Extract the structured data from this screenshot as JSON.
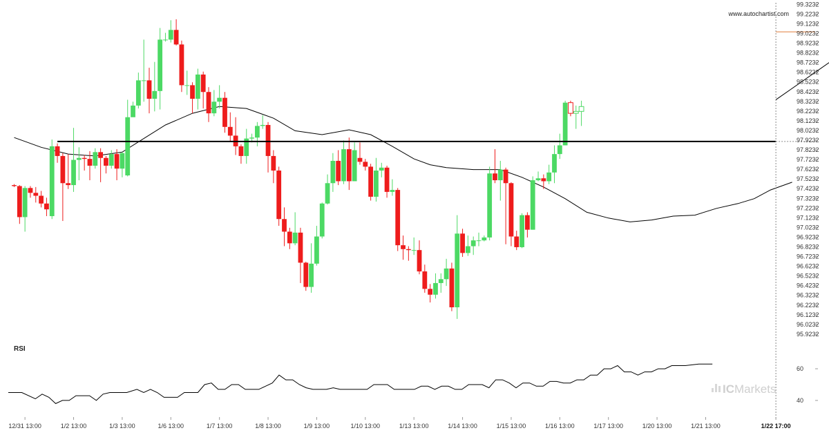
{
  "watermark": "www.autochartist.com",
  "brand": {
    "prefix": "IC",
    "name": "Markets"
  },
  "colors": {
    "up": "#4cd964",
    "down": "#ee1c1c",
    "level": "#000000",
    "target": "#e07b39",
    "ma": "#000000",
    "rsi": "#000000",
    "grid": "#e5e5e5"
  },
  "chart_data": {
    "type": "candlestick",
    "title": "",
    "y_ticks": [
      "95.9232",
      "96.0232",
      "96.1232",
      "96.2232",
      "96.3232",
      "96.4232",
      "96.5232",
      "96.6232",
      "96.7232",
      "96.8232",
      "96.9232",
      "97.0232",
      "97.1232",
      "97.2232",
      "97.3232",
      "97.4232",
      "97.5232",
      "97.6232",
      "97.7232",
      "97.8232",
      "97.9232",
      "98.0232",
      "98.1232",
      "98.2232",
      "98.3232",
      "98.4232",
      "98.5232",
      "98.6232",
      "98.7232",
      "98.8232",
      "98.9232",
      "99.0232",
      "99.1232",
      "99.2232",
      "99.3232"
    ],
    "ylim": [
      95.88,
      99.34
    ],
    "x_labels": [
      {
        "label": "12/31 13:00",
        "i": 2
      },
      {
        "label": "1/2 13:00",
        "i": 11
      },
      {
        "label": "1/3 13:00",
        "i": 20
      },
      {
        "label": "1/6 13:00",
        "i": 29
      },
      {
        "label": "1/7 13:00",
        "i": 38
      },
      {
        "label": "1/8 13:00",
        "i": 47
      },
      {
        "label": "1/9 13:00",
        "i": 56
      },
      {
        "label": "1/10 13:00",
        "i": 65
      },
      {
        "label": "1/13 13:00",
        "i": 74
      },
      {
        "label": "1/14 13:00",
        "i": 83
      },
      {
        "label": "1/15 13:00",
        "i": 92
      },
      {
        "label": "1/16 13:00",
        "i": 101
      },
      {
        "label": "1/17 13:00",
        "i": 110
      },
      {
        "label": "1/20 13:00",
        "i": 119
      },
      {
        "label": "1/21 13:00",
        "i": 128
      },
      {
        "label": "1/22 17:00",
        "i": 141,
        "bold": true
      }
    ],
    "candles": [
      [
        97.46,
        97.45,
        97.47,
        97.44
      ],
      [
        97.45,
        97.13,
        97.46,
        97.06
      ],
      [
        97.13,
        97.43,
        97.45,
        96.98
      ],
      [
        97.43,
        97.38,
        97.45,
        97.33
      ],
      [
        97.38,
        97.35,
        97.44,
        97.28
      ],
      [
        97.35,
        97.27,
        97.4,
        97.23
      ],
      [
        97.27,
        97.21,
        97.33,
        97.14
      ],
      [
        97.14,
        97.86,
        97.93,
        97.11
      ],
      [
        97.86,
        97.76,
        97.89,
        97.69
      ],
      [
        97.76,
        97.48,
        97.79,
        97.09
      ],
      [
        97.48,
        97.46,
        97.78,
        97.42
      ],
      [
        97.46,
        97.72,
        98.05,
        97.39
      ],
      [
        97.72,
        97.74,
        97.85,
        97.51
      ],
      [
        97.74,
        97.73,
        97.77,
        97.61
      ],
      [
        97.73,
        97.66,
        97.81,
        97.51
      ],
      [
        97.66,
        97.8,
        97.84,
        97.63
      ],
      [
        97.8,
        97.74,
        97.84,
        97.49
      ],
      [
        97.74,
        97.66,
        97.76,
        97.58
      ],
      [
        97.66,
        97.78,
        97.82,
        97.63
      ],
      [
        97.78,
        97.63,
        97.83,
        97.51
      ],
      [
        97.63,
        97.79,
        97.8,
        97.54
      ],
      [
        97.56,
        98.16,
        98.34,
        97.55
      ],
      [
        98.16,
        98.28,
        98.32,
        98.19
      ],
      [
        98.28,
        98.54,
        98.62,
        98.25
      ],
      [
        98.54,
        98.54,
        98.96,
        98.32
      ],
      [
        98.54,
        98.35,
        98.67,
        98.2
      ],
      [
        98.35,
        98.43,
        98.73,
        98.22
      ],
      [
        98.43,
        98.96,
        99.08,
        98.24
      ],
      [
        98.96,
        98.96,
        99.03,
        98.94
      ],
      [
        98.96,
        99.06,
        99.16,
        98.93
      ],
      [
        99.06,
        98.91,
        99.17,
        98.9
      ],
      [
        98.91,
        98.49,
        98.95,
        98.42
      ],
      [
        98.49,
        98.49,
        98.64,
        98.39
      ],
      [
        98.49,
        98.35,
        98.52,
        98.2
      ],
      [
        98.35,
        98.6,
        98.66,
        98.24
      ],
      [
        98.6,
        98.42,
        98.63,
        98.25
      ],
      [
        98.42,
        98.2,
        98.47,
        98.11
      ],
      [
        98.2,
        98.32,
        98.44,
        98.17
      ],
      [
        98.32,
        98.36,
        98.49,
        98.25
      ],
      [
        98.36,
        98.06,
        98.42,
        98.0
      ],
      [
        98.06,
        97.97,
        98.21,
        97.91
      ],
      [
        97.97,
        97.86,
        98.16,
        97.77
      ],
      [
        97.86,
        97.76,
        97.88,
        97.68
      ],
      [
        97.76,
        97.94,
        98.04,
        97.68
      ],
      [
        97.94,
        97.95,
        97.99,
        97.9
      ],
      [
        97.95,
        98.07,
        98.11,
        97.86
      ],
      [
        98.07,
        98.08,
        98.18,
        98.04
      ],
      [
        98.08,
        97.76,
        98.11,
        97.59
      ],
      [
        97.76,
        97.61,
        97.82,
        97.48
      ],
      [
        97.61,
        97.11,
        97.65,
        97.04
      ],
      [
        97.11,
        96.98,
        97.23,
        96.83
      ],
      [
        96.98,
        96.86,
        97.02,
        96.8
      ],
      [
        96.86,
        96.97,
        97.18,
        96.84
      ],
      [
        96.97,
        96.66,
        97.02,
        96.45
      ],
      [
        96.66,
        96.41,
        96.67,
        96.37
      ],
      [
        96.41,
        96.65,
        96.86,
        96.35
      ],
      [
        96.65,
        96.93,
        97.04,
        96.63
      ],
      [
        96.93,
        97.27,
        97.28,
        96.91
      ],
      [
        97.27,
        97.48,
        97.57,
        97.26
      ],
      [
        97.48,
        97.71,
        97.79,
        97.39
      ],
      [
        97.71,
        97.5,
        97.82,
        97.46
      ],
      [
        97.5,
        97.83,
        97.92,
        97.47
      ],
      [
        97.83,
        97.5,
        97.95,
        97.41
      ],
      [
        97.5,
        97.82,
        97.9,
        97.74
      ],
      [
        97.74,
        97.7,
        97.9,
        97.67
      ],
      [
        97.7,
        97.65,
        97.73,
        97.61
      ],
      [
        97.65,
        97.34,
        97.68,
        97.3
      ],
      [
        97.34,
        97.61,
        97.74,
        97.29
      ],
      [
        97.61,
        97.64,
        97.69,
        97.54
      ],
      [
        97.64,
        97.39,
        97.66,
        97.33
      ],
      [
        97.39,
        97.41,
        97.52,
        97.35
      ],
      [
        97.41,
        96.84,
        97.43,
        96.78
      ],
      [
        96.84,
        96.8,
        96.94,
        96.69
      ],
      [
        96.8,
        96.79,
        96.83,
        96.68
      ],
      [
        96.79,
        96.79,
        96.92,
        96.74
      ],
      [
        96.79,
        96.57,
        96.89,
        96.54
      ],
      [
        96.57,
        96.39,
        96.64,
        96.35
      ],
      [
        96.39,
        96.33,
        96.44,
        96.25
      ],
      [
        96.33,
        96.45,
        96.55,
        96.29
      ],
      [
        96.45,
        96.49,
        96.55,
        96.35
      ],
      [
        96.49,
        96.6,
        96.7,
        96.42
      ],
      [
        96.6,
        96.2,
        96.66,
        96.16
      ],
      [
        96.2,
        96.96,
        97.15,
        96.08
      ],
      [
        96.96,
        96.76,
        97.01,
        96.72
      ],
      [
        96.76,
        96.83,
        96.94,
        96.73
      ],
      [
        96.83,
        96.89,
        96.93,
        96.74
      ],
      [
        96.89,
        96.89,
        96.97,
        96.83
      ],
      [
        96.89,
        96.92,
        96.94,
        96.88
      ],
      [
        96.92,
        97.58,
        97.65,
        96.89
      ],
      [
        97.58,
        97.51,
        97.83,
        97.48
      ],
      [
        97.51,
        97.62,
        97.71,
        97.3
      ],
      [
        97.62,
        97.48,
        97.64,
        96.85
      ],
      [
        97.48,
        96.93,
        97.49,
        96.83
      ],
      [
        96.93,
        96.82,
        96.99,
        96.79
      ],
      [
        96.82,
        97.15,
        97.17,
        96.81
      ],
      [
        97.15,
        97.0,
        97.18,
        96.92
      ],
      [
        97.0,
        97.51,
        97.55,
        97.0
      ],
      [
        97.51,
        97.53,
        97.6,
        97.5
      ],
      [
        97.53,
        97.5,
        97.57,
        97.42
      ],
      [
        97.5,
        97.59,
        97.67,
        97.47
      ],
      [
        97.59,
        97.78,
        97.87,
        97.48
      ],
      [
        97.78,
        97.87,
        97.99,
        97.73
      ],
      [
        97.87,
        98.31,
        98.33,
        97.92
      ],
      [
        98.31,
        98.2,
        98.33,
        98.17
      ],
      [
        98.2,
        98.22,
        98.28,
        98.04
      ],
      [
        98.22,
        98.27,
        98.33,
        98.07
      ]
    ],
    "level": {
      "price": 97.91,
      "start_i": 8,
      "end_i": 141
    },
    "target": {
      "price": 99.04,
      "start_i": 141
    },
    "projection": {
      "from_price": 98.34,
      "to_price": 99.04,
      "to_i": 159
    },
    "current_x_i": 141,
    "current_price": 97.91,
    "ma": [
      [
        0,
        97.95
      ],
      [
        5,
        97.85
      ],
      [
        10,
        97.78
      ],
      [
        15,
        97.76
      ],
      [
        20,
        97.8
      ],
      [
        24,
        97.94
      ],
      [
        28,
        98.08
      ],
      [
        33,
        98.2
      ],
      [
        38,
        98.27
      ],
      [
        43,
        98.25
      ],
      [
        48,
        98.15
      ],
      [
        52,
        98.02
      ],
      [
        57,
        97.98
      ],
      [
        62,
        98.03
      ],
      [
        66,
        97.98
      ],
      [
        70,
        97.86
      ],
      [
        74,
        97.73
      ],
      [
        77,
        97.67
      ],
      [
        80,
        97.64
      ],
      [
        85,
        97.62
      ],
      [
        90,
        97.62
      ],
      [
        94,
        97.54
      ],
      [
        98,
        97.44
      ],
      [
        102,
        97.32
      ],
      [
        106,
        97.18
      ],
      [
        110,
        97.12
      ],
      [
        114,
        97.08
      ],
      [
        118,
        97.1
      ],
      [
        122,
        97.14
      ],
      [
        126,
        97.15
      ],
      [
        130,
        97.22
      ],
      [
        134,
        97.27
      ],
      [
        137,
        97.32
      ],
      [
        140,
        97.41
      ],
      [
        144,
        97.49
      ]
    ],
    "rsi": {
      "label": "RSI",
      "ticks": [
        40,
        60
      ],
      "ylim": [
        33,
        67
      ],
      "values": [
        [
          0,
          45
        ],
        [
          4,
          45
        ],
        [
          8,
          41
        ],
        [
          10,
          44
        ],
        [
          12,
          42
        ],
        [
          14,
          38
        ],
        [
          16,
          40
        ],
        [
          18,
          40
        ],
        [
          20,
          43
        ],
        [
          24,
          43
        ],
        [
          26,
          40
        ],
        [
          28,
          44
        ],
        [
          30,
          45
        ],
        [
          35,
          45
        ],
        [
          38,
          47
        ],
        [
          40,
          45
        ],
        [
          42,
          47
        ],
        [
          44,
          45
        ],
        [
          46,
          42
        ],
        [
          50,
          42
        ],
        [
          52,
          45
        ],
        [
          56,
          45
        ],
        [
          58,
          50
        ],
        [
          60,
          51
        ],
        [
          62,
          47
        ],
        [
          64,
          47
        ],
        [
          66,
          50
        ],
        [
          68,
          50
        ],
        [
          70,
          47
        ],
        [
          72,
          47
        ],
        [
          74,
          47
        ],
        [
          76,
          49
        ],
        [
          78,
          51
        ],
        [
          80,
          56
        ],
        [
          82,
          53
        ],
        [
          84,
          53
        ],
        [
          86,
          50
        ],
        [
          88,
          48
        ],
        [
          90,
          47
        ],
        [
          94,
          47
        ],
        [
          96,
          48
        ],
        [
          98,
          47
        ],
        [
          101,
          47
        ],
        [
          104,
          47
        ],
        [
          106,
          47
        ],
        [
          108,
          50
        ],
        [
          112,
          50
        ],
        [
          114,
          47
        ],
        [
          116,
          47
        ],
        [
          120,
          47
        ],
        [
          122,
          49
        ],
        [
          124,
          49
        ],
        [
          126,
          47
        ],
        [
          128,
          49
        ],
        [
          130,
          49
        ],
        [
          132,
          47
        ],
        [
          134,
          47
        ],
        [
          136,
          50
        ],
        [
          140,
          50
        ],
        [
          142,
          48
        ],
        [
          144,
          53
        ],
        [
          146,
          53
        ],
        [
          148,
          51
        ],
        [
          150,
          48
        ],
        [
          152,
          51
        ],
        [
          154,
          51
        ],
        [
          156,
          49
        ],
        [
          158,
          49
        ],
        [
          160,
          52
        ],
        [
          162,
          52
        ],
        [
          164,
          51
        ],
        [
          166,
          51
        ],
        [
          168,
          53
        ],
        [
          170,
          53
        ],
        [
          172,
          56
        ],
        [
          174,
          56
        ],
        [
          176,
          60
        ],
        [
          178,
          60
        ],
        [
          180,
          62
        ],
        [
          182,
          58
        ],
        [
          184,
          58
        ],
        [
          186,
          56
        ],
        [
          188,
          58
        ],
        [
          190,
          58
        ],
        [
          192,
          60
        ],
        [
          194,
          60
        ],
        [
          196,
          62
        ],
        [
          200,
          62
        ],
        [
          204,
          63
        ],
        [
          208,
          63
        ]
      ]
    }
  }
}
